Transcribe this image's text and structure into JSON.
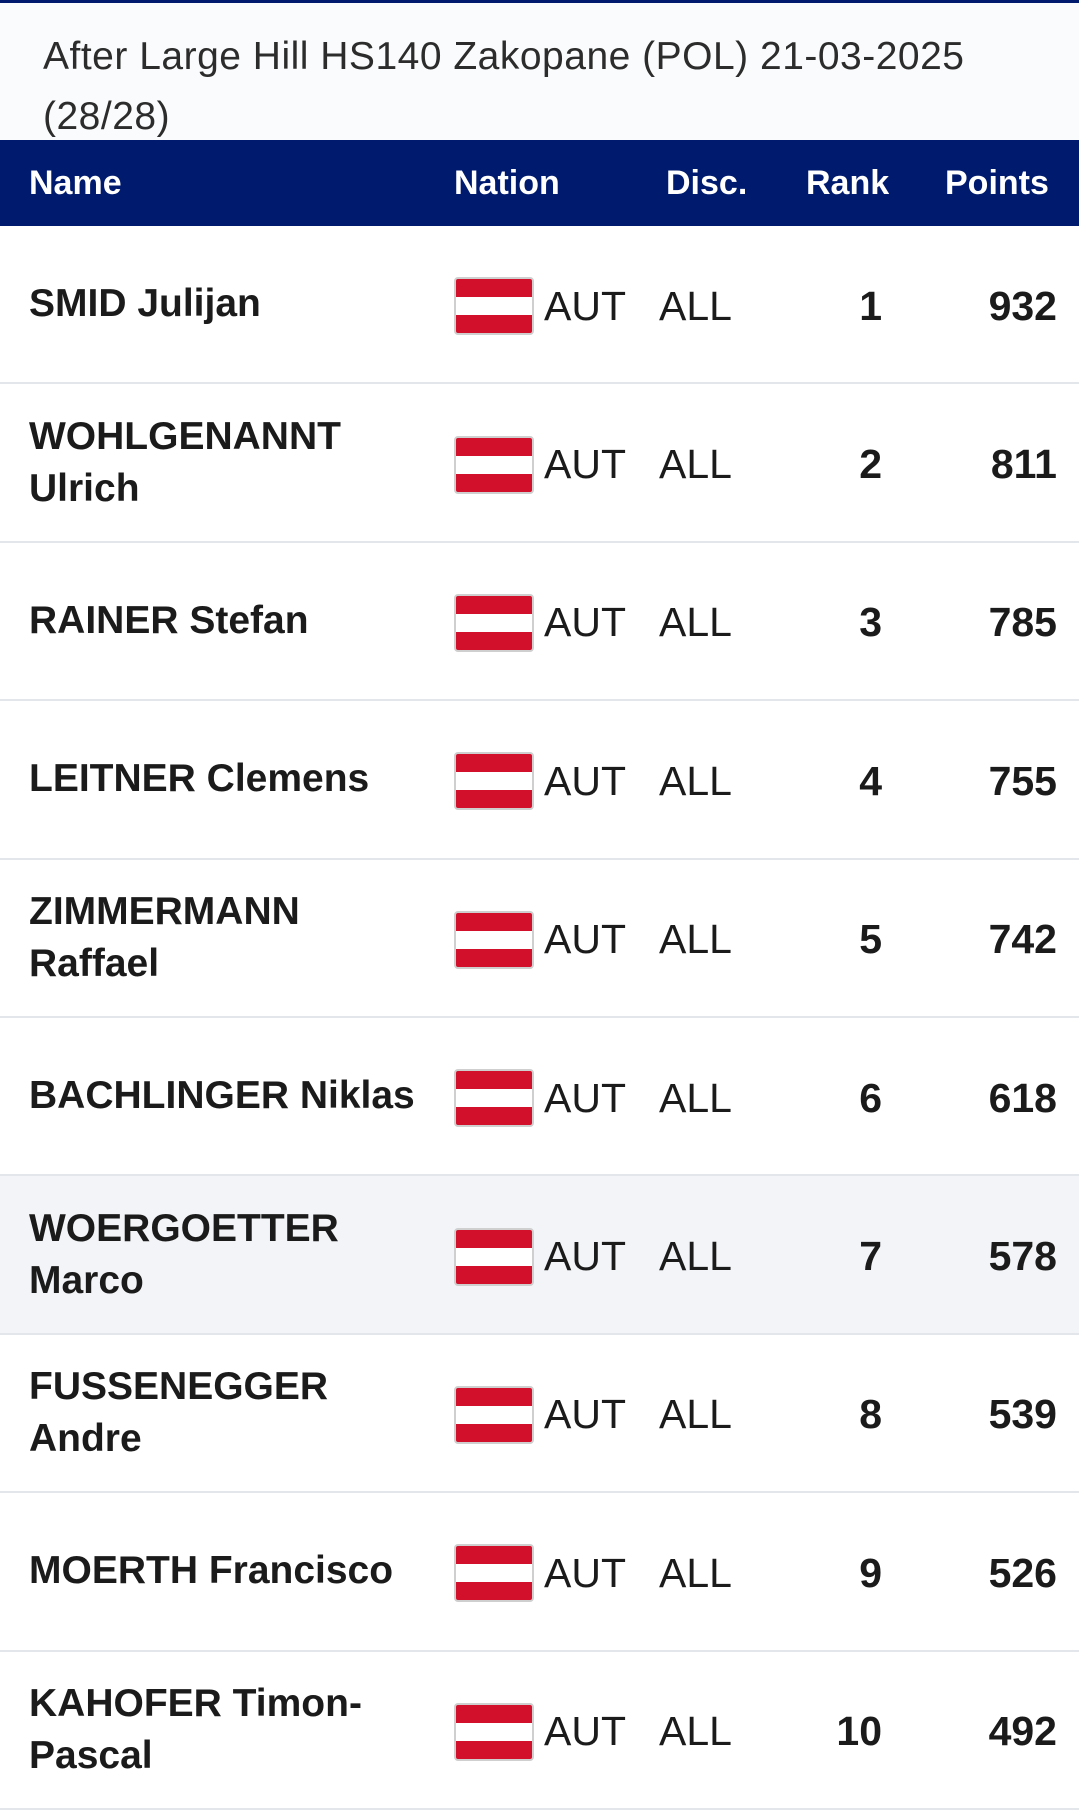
{
  "subtitle": "After Large Hill HS140 Zakopane (POL) 21-03-2025 (28/28)",
  "table": {
    "headers": {
      "name": "Name",
      "nation": "Nation",
      "disc": "Disc.",
      "rank": "Rank",
      "points": "Points"
    },
    "rows": [
      {
        "name": "SMID Julijan",
        "nation": "AUT",
        "flag": "austria-flag-icon",
        "disc": "ALL",
        "rank": "1",
        "points": "932"
      },
      {
        "name": "WOHLGENANNT Ulrich",
        "nation": "AUT",
        "flag": "austria-flag-icon",
        "disc": "ALL",
        "rank": "2",
        "points": "811"
      },
      {
        "name": "RAINER Stefan",
        "nation": "AUT",
        "flag": "austria-flag-icon",
        "disc": "ALL",
        "rank": "3",
        "points": "785"
      },
      {
        "name": "LEITNER Clemens",
        "nation": "AUT",
        "flag": "austria-flag-icon",
        "disc": "ALL",
        "rank": "4",
        "points": "755"
      },
      {
        "name": "ZIMMERMANN Raffael",
        "nation": "AUT",
        "flag": "austria-flag-icon",
        "disc": "ALL",
        "rank": "5",
        "points": "742"
      },
      {
        "name": "BACHLINGER Niklas",
        "nation": "AUT",
        "flag": "austria-flag-icon",
        "disc": "ALL",
        "rank": "6",
        "points": "618"
      },
      {
        "name": "WOERGOETTER Marco",
        "nation": "AUT",
        "flag": "austria-flag-icon",
        "disc": "ALL",
        "rank": "7",
        "points": "578"
      },
      {
        "name": "FUSSENEGGER Andre",
        "nation": "AUT",
        "flag": "austria-flag-icon",
        "disc": "ALL",
        "rank": "8",
        "points": "539"
      },
      {
        "name": "MOERTH Francisco",
        "nation": "AUT",
        "flag": "austria-flag-icon",
        "disc": "ALL",
        "rank": "9",
        "points": "526"
      },
      {
        "name": "KAHOFER Timon-Pascal",
        "nation": "AUT",
        "flag": "austria-flag-icon",
        "disc": "ALL",
        "rank": "10",
        "points": "492"
      }
    ]
  },
  "colors": {
    "header_bg": "#001a6e",
    "header_text": "#ffffff",
    "flag_red": "#d2102b",
    "row_highlight": "#f2f4f7"
  }
}
